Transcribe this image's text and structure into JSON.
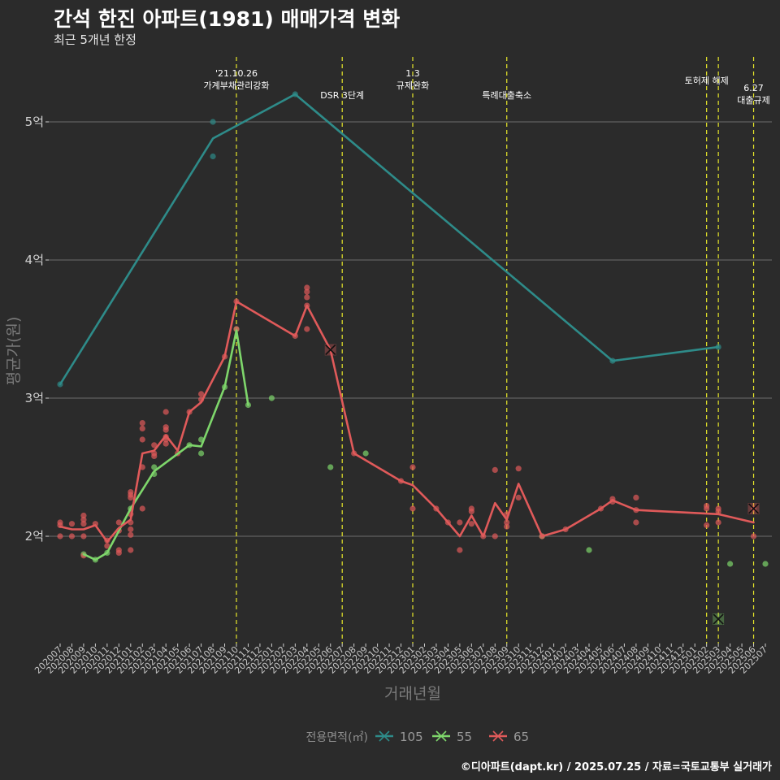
{
  "chart_data": {
    "type": "line",
    "title": "간석 한진 아파트(1981) 매매가격 변화",
    "subtitle": "최근 5개년 한정",
    "xlabel": "거래년월",
    "ylabel": "평균가(원)",
    "caption": "©디아파트(dapt.kr) / 2025.07.25 / 자료=국토교통부 실거래가",
    "legend": {
      "title": "전용면적(㎡)",
      "position": "bottom"
    },
    "x_categories": [
      "202007",
      "202008",
      "202009",
      "202010",
      "202011",
      "202012",
      "202101",
      "202102",
      "202103",
      "202104",
      "202105",
      "202106",
      "202107",
      "202108",
      "202109",
      "202110",
      "202111",
      "202112",
      "202201",
      "202202",
      "202203",
      "202204",
      "202205",
      "202206",
      "202207",
      "202208",
      "202209",
      "202210",
      "202211",
      "202212",
      "202301",
      "202302",
      "202303",
      "202304",
      "202305",
      "202306",
      "202307",
      "202308",
      "202309",
      "202310",
      "202311",
      "202312",
      "202401",
      "202402",
      "202403",
      "202404",
      "202405",
      "202406",
      "202407",
      "202408",
      "202409",
      "202410",
      "202411",
      "202412",
      "202501",
      "202502",
      "202503",
      "202504",
      "202505",
      "202506",
      "202507"
    ],
    "y_ticks": [
      {
        "value": 2.0,
        "label": "2억"
      },
      {
        "value": 3.0,
        "label": "3억"
      },
      {
        "value": 4.0,
        "label": "4억"
      },
      {
        "value": 5.0,
        "label": "5억"
      }
    ],
    "ylim": [
      1.22,
      5.5
    ],
    "unit": "억원",
    "grid": "horizontal",
    "series": [
      {
        "name": "105",
        "color": "#2e8b89",
        "line": [
          [
            "202007",
            3.1
          ],
          [
            "202108",
            4.88
          ],
          [
            "202203",
            5.2
          ],
          [
            "202406",
            3.27
          ],
          [
            "202503",
            3.37
          ]
        ],
        "points": [
          [
            "202007",
            3.1
          ],
          [
            "202108",
            5.0
          ],
          [
            "202108",
            4.75
          ],
          [
            "202203",
            5.2
          ],
          [
            "202406",
            3.27
          ],
          [
            "202503",
            3.37
          ]
        ],
        "crosses": []
      },
      {
        "name": "55",
        "color": "#7ed66b",
        "line": [
          [
            "202009",
            1.87
          ],
          [
            "202010",
            1.83
          ],
          [
            "202011",
            1.88
          ],
          [
            "202101",
            2.2
          ],
          [
            "202103",
            2.47
          ],
          [
            "202106",
            2.66
          ],
          [
            "202107",
            2.65
          ],
          [
            "202109",
            3.08
          ],
          [
            "202110",
            3.49
          ],
          [
            "202111",
            2.95
          ]
        ],
        "points": [
          [
            "202009",
            1.87
          ],
          [
            "202010",
            1.83
          ],
          [
            "202011",
            1.88
          ],
          [
            "202101",
            2.2
          ],
          [
            "202103",
            2.5
          ],
          [
            "202103",
            2.45
          ],
          [
            "202106",
            2.66
          ],
          [
            "202107",
            2.7
          ],
          [
            "202107",
            2.6
          ],
          [
            "202109",
            3.08
          ],
          [
            "202110",
            3.5
          ],
          [
            "202111",
            2.95
          ],
          [
            "202201",
            3.0
          ],
          [
            "202206",
            2.5
          ],
          [
            "202209",
            2.6
          ],
          [
            "202312",
            2.0
          ],
          [
            "202404",
            1.9
          ],
          [
            "202504",
            1.8
          ],
          [
            "202507",
            1.8
          ]
        ],
        "crosses": [
          [
            "202503",
            1.4
          ]
        ]
      },
      {
        "name": "65",
        "color": "#e05a5a",
        "line": [
          [
            "202007",
            2.07
          ],
          [
            "202008",
            2.05
          ],
          [
            "202009",
            2.05
          ],
          [
            "202010",
            2.08
          ],
          [
            "202011",
            1.96
          ],
          [
            "202012",
            2.06
          ],
          [
            "202101",
            2.12
          ],
          [
            "202102",
            2.6
          ],
          [
            "202103",
            2.62
          ],
          [
            "202104",
            2.73
          ],
          [
            "202105",
            2.62
          ],
          [
            "202106",
            2.9
          ],
          [
            "202107",
            2.97
          ],
          [
            "202109",
            3.3
          ],
          [
            "202110",
            3.7
          ],
          [
            "202203",
            3.45
          ],
          [
            "202204",
            3.67
          ],
          [
            "202206",
            3.35
          ],
          [
            "202208",
            2.6
          ],
          [
            "202212",
            2.4
          ],
          [
            "202301",
            2.37
          ],
          [
            "202303",
            2.2
          ],
          [
            "202304",
            2.1
          ],
          [
            "202305",
            2.0
          ],
          [
            "202306",
            2.15
          ],
          [
            "202307",
            2.0
          ],
          [
            "202308",
            2.24
          ],
          [
            "202309",
            2.12
          ],
          [
            "202310",
            2.38
          ],
          [
            "202312",
            2.0
          ],
          [
            "202402",
            2.05
          ],
          [
            "202405",
            2.2
          ],
          [
            "202406",
            2.26
          ],
          [
            "202408",
            2.19
          ],
          [
            "202503",
            2.16
          ],
          [
            "202506",
            2.1
          ]
        ],
        "points": [
          [
            "202007",
            2.1
          ],
          [
            "202007",
            2.08
          ],
          [
            "202007",
            2.0
          ],
          [
            "202008",
            2.09
          ],
          [
            "202008",
            2.0
          ],
          [
            "202009",
            2.15
          ],
          [
            "202009",
            2.12
          ],
          [
            "202009",
            2.09
          ],
          [
            "202009",
            2.0
          ],
          [
            "202009",
            1.86
          ],
          [
            "202010",
            2.09
          ],
          [
            "202011",
            1.97
          ],
          [
            "202011",
            1.93
          ],
          [
            "202012",
            2.1
          ],
          [
            "202012",
            2.04
          ],
          [
            "202012",
            1.9
          ],
          [
            "202012",
            1.88
          ],
          [
            "202101",
            2.32
          ],
          [
            "202101",
            2.3
          ],
          [
            "202101",
            2.28
          ],
          [
            "202101",
            2.16
          ],
          [
            "202101",
            2.1
          ],
          [
            "202101",
            2.05
          ],
          [
            "202101",
            2.01
          ],
          [
            "202101",
            1.9
          ],
          [
            "202102",
            2.82
          ],
          [
            "202102",
            2.78
          ],
          [
            "202102",
            2.7
          ],
          [
            "202102",
            2.5
          ],
          [
            "202102",
            2.2
          ],
          [
            "202103",
            2.66
          ],
          [
            "202103",
            2.6
          ],
          [
            "202103",
            2.58
          ],
          [
            "202104",
            2.9
          ],
          [
            "202104",
            2.79
          ],
          [
            "202104",
            2.77
          ],
          [
            "202104",
            2.72
          ],
          [
            "202104",
            2.7
          ],
          [
            "202104",
            2.67
          ],
          [
            "202105",
            2.6
          ],
          [
            "202106",
            2.9
          ],
          [
            "202107",
            3.03
          ],
          [
            "202107",
            2.99
          ],
          [
            "202109",
            3.3
          ],
          [
            "202110",
            3.7
          ],
          [
            "202110",
            3.5
          ],
          [
            "202203",
            3.45
          ],
          [
            "202204",
            3.8
          ],
          [
            "202204",
            3.77
          ],
          [
            "202204",
            3.73
          ],
          [
            "202204",
            3.67
          ],
          [
            "202204",
            3.5
          ],
          [
            "202208",
            2.6
          ],
          [
            "202212",
            2.4
          ],
          [
            "202301",
            2.5
          ],
          [
            "202301",
            2.2
          ],
          [
            "202303",
            2.2
          ],
          [
            "202304",
            2.1
          ],
          [
            "202305",
            2.1
          ],
          [
            "202305",
            1.9
          ],
          [
            "202306",
            2.2
          ],
          [
            "202306",
            2.18
          ],
          [
            "202306",
            2.09
          ],
          [
            "202307",
            2.0
          ],
          [
            "202308",
            2.48
          ],
          [
            "202308",
            2.0
          ],
          [
            "202309",
            2.16
          ],
          [
            "202309",
            2.1
          ],
          [
            "202309",
            2.07
          ],
          [
            "202310",
            2.49
          ],
          [
            "202310",
            2.28
          ],
          [
            "202312",
            2.0
          ],
          [
            "202402",
            2.05
          ],
          [
            "202405",
            2.2
          ],
          [
            "202406",
            2.27
          ],
          [
            "202406",
            2.25
          ],
          [
            "202408",
            2.28
          ],
          [
            "202408",
            2.19
          ],
          [
            "202408",
            2.1
          ],
          [
            "202502",
            2.22
          ],
          [
            "202502",
            2.2
          ],
          [
            "202502",
            2.08
          ],
          [
            "202503",
            2.2
          ],
          [
            "202503",
            2.18
          ],
          [
            "202503",
            2.1
          ],
          [
            "202506",
            2.2
          ],
          [
            "202506",
            2.0
          ]
        ],
        "crosses": [
          [
            "202206",
            3.35
          ],
          [
            "202506",
            2.2
          ]
        ]
      }
    ],
    "events": [
      {
        "x": "202110",
        "lines": [
          "'21.10.26",
          "가계부채관리강화"
        ],
        "anchor": "top"
      },
      {
        "x": "202207",
        "lines": [
          "DSR 3단계"
        ],
        "anchor": "low"
      },
      {
        "x": "202301",
        "lines": [
          "1.3",
          "규제완화"
        ],
        "anchor": "top"
      },
      {
        "x": "202309",
        "lines": [
          "특례대출축소"
        ],
        "anchor": "low"
      },
      {
        "x": "202502",
        "lines": [
          "토허제 해제"
        ],
        "anchor": "mid"
      },
      {
        "x": "202503",
        "lines": [],
        "anchor": "none"
      },
      {
        "x": "202506",
        "lines": [
          "6.27",
          "대출규제"
        ],
        "anchor": "right"
      }
    ]
  }
}
